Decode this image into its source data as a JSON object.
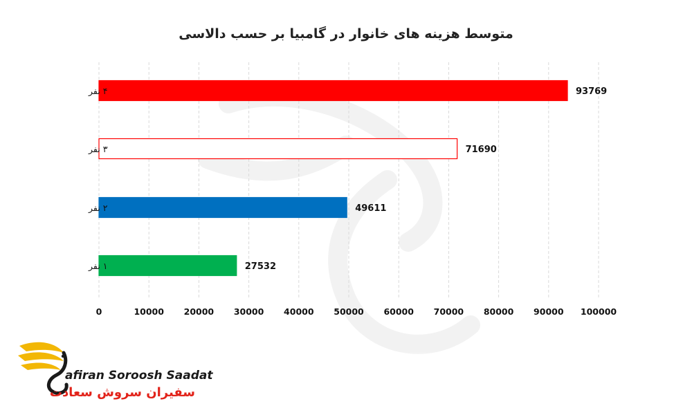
{
  "chart_data": {
    "type": "bar",
    "orientation": "horizontal",
    "title": "متوسط هزینه های خانوار در گامبیا بر حسب دالاسی",
    "categories": [
      "۴ نفر",
      "۳ نفر",
      "۲ نفر",
      "۱ نفر"
    ],
    "values": [
      93769,
      71690,
      49611,
      27532
    ],
    "data_labels": [
      "93769",
      "71690",
      "49611",
      "27532"
    ],
    "bar_fills": [
      "#ff0000",
      "#ffffff",
      "#0070c0",
      "#00b050"
    ],
    "bar_strokes": [
      "#ff0000",
      "#ff0000",
      "#0070c0",
      "#00b050"
    ],
    "xlim": [
      0,
      100000
    ],
    "x_ticks": [
      0,
      10000,
      20000,
      30000,
      40000,
      50000,
      60000,
      70000,
      80000,
      90000,
      100000
    ],
    "x_tick_labels": [
      "0",
      "10000",
      "20000",
      "30000",
      "40000",
      "50000",
      "60000",
      "70000",
      "80000",
      "90000",
      "100000"
    ],
    "grid": true,
    "legend": "none"
  },
  "logo": {
    "name_en": "afiran Soroosh Saadat",
    "name_fa": "سفیران سروش سعادت",
    "accent": "#f2b705",
    "text_color": "#e2231a"
  }
}
